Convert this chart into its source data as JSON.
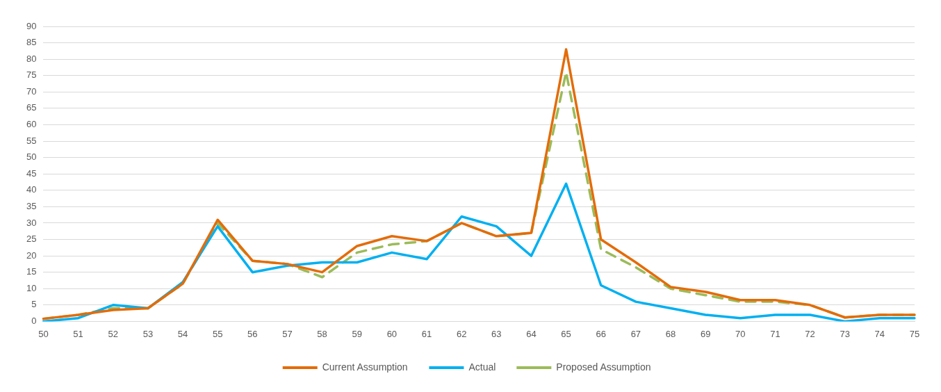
{
  "chart_data": {
    "type": "line",
    "categories": [
      "50",
      "51",
      "52",
      "53",
      "54",
      "55",
      "56",
      "57",
      "58",
      "59",
      "60",
      "61",
      "62",
      "63",
      "64",
      "65",
      "66",
      "67",
      "68",
      "69",
      "70",
      "71",
      "72",
      "73",
      "74",
      "75"
    ],
    "series": [
      {
        "name": "Current Assumption",
        "color": "#e36c0a",
        "line_style": "solid",
        "values": [
          0.8,
          2,
          3.5,
          4,
          11.5,
          31,
          18.5,
          17.5,
          15,
          23,
          26,
          24.5,
          30,
          26,
          27,
          83,
          25,
          18,
          10.5,
          9,
          6.5,
          6.5,
          5,
          1.2,
          2,
          2
        ]
      },
      {
        "name": "Actual",
        "color": "#00b0f0",
        "line_style": "solid",
        "values": [
          0,
          1,
          5,
          4,
          12,
          29,
          15,
          17,
          18,
          18,
          21,
          19,
          32,
          29,
          20,
          42,
          11,
          6,
          4,
          2,
          1,
          2,
          2,
          0,
          1,
          1
        ]
      },
      {
        "name": "Proposed Assumption",
        "color": "#9bbb59",
        "line_style": "dashed",
        "values": [
          0.8,
          2,
          4,
          4,
          11.5,
          30,
          18.5,
          17.5,
          13.5,
          21,
          23.5,
          24.5,
          30,
          26,
          27,
          76,
          22,
          16.5,
          10,
          8,
          6,
          6,
          5,
          1.2,
          2,
          2
        ]
      }
    ],
    "ylim": [
      0,
      90
    ],
    "yticks": [
      0,
      5,
      10,
      15,
      20,
      25,
      30,
      35,
      40,
      45,
      50,
      55,
      60,
      65,
      70,
      75,
      80,
      85,
      90
    ],
    "grid": "y",
    "legend": "bottom",
    "marker": "none"
  }
}
